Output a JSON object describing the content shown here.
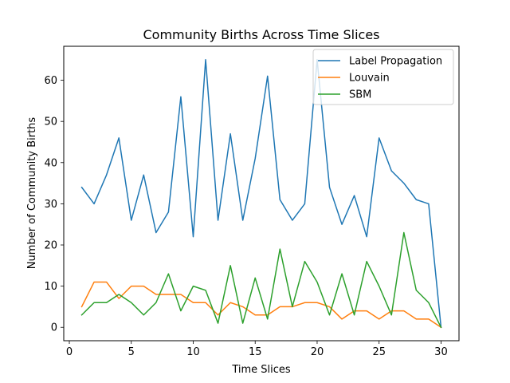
{
  "chart_data": {
    "type": "line",
    "title": "Community Births Across Time Slices",
    "xlabel": "Time Slices",
    "ylabel": "Number of Community Births",
    "xlim": [
      -0.45,
      31.45
    ],
    "ylim": [
      -3.25,
      68.25
    ],
    "xticks": [
      0,
      5,
      10,
      15,
      20,
      25,
      30
    ],
    "yticks": [
      0,
      10,
      20,
      30,
      40,
      50,
      60
    ],
    "grid": false,
    "legend_position": "top-right",
    "x": [
      1,
      2,
      3,
      4,
      5,
      6,
      7,
      8,
      9,
      10,
      11,
      12,
      13,
      14,
      15,
      16,
      17,
      18,
      19,
      20,
      21,
      22,
      23,
      24,
      25,
      26,
      27,
      28,
      29,
      30
    ],
    "series": [
      {
        "name": "Label Propagation",
        "color": "#1f77b4",
        "values": [
          34,
          30,
          37,
          46,
          26,
          37,
          23,
          28,
          56,
          22,
          65,
          26,
          47,
          26,
          41,
          61,
          31,
          26,
          30,
          65,
          34,
          25,
          32,
          22,
          46,
          38,
          35,
          31,
          30,
          0
        ]
      },
      {
        "name": "Louvain",
        "color": "#ff7f0e",
        "values": [
          5,
          11,
          11,
          7,
          10,
          10,
          8,
          8,
          8,
          6,
          6,
          3,
          6,
          5,
          3,
          3,
          5,
          5,
          6,
          6,
          5,
          2,
          4,
          4,
          2,
          4,
          4,
          2,
          2,
          0
        ]
      },
      {
        "name": "SBM",
        "color": "#2ca02c",
        "values": [
          3,
          6,
          6,
          8,
          6,
          3,
          6,
          13,
          4,
          10,
          9,
          1,
          15,
          1,
          12,
          2,
          19,
          5,
          16,
          11,
          3,
          13,
          3,
          16,
          10,
          3,
          23,
          9,
          6,
          0
        ]
      }
    ]
  }
}
